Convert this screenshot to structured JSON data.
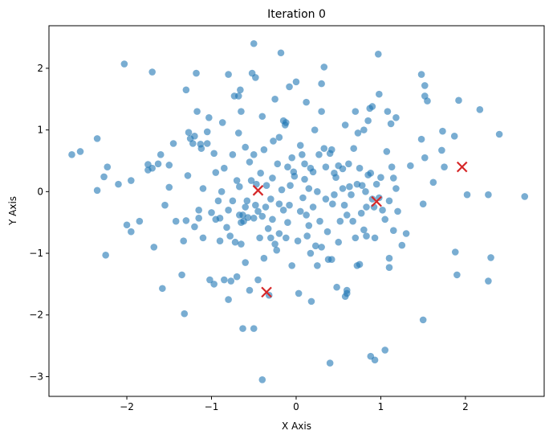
{
  "chart_data": {
    "type": "scatter",
    "title": "Iteration 0",
    "x_label": "X Axis",
    "y_label": "Y Axis",
    "xlim": [
      -2.92,
      2.93
    ],
    "ylim": [
      -3.32,
      2.69
    ],
    "xticks": [
      {
        "value": -2,
        "label": "−2"
      },
      {
        "value": -1,
        "label": "−1"
      },
      0,
      1,
      2
    ],
    "yticks": [
      {
        "value": -3,
        "label": "−3"
      },
      {
        "value": -2,
        "label": "−2"
      },
      {
        "value": -1,
        "label": "−1"
      },
      0,
      1,
      2
    ],
    "series": [
      {
        "color": "#1f77b4",
        "marker": "o",
        "x": [
          -2.65,
          -2.55,
          -2.35,
          -2.35,
          -2.27,
          -2.23,
          -2.25,
          -2.1,
          -2.03,
          -2.0,
          -1.95,
          -1.95,
          -1.85,
          -1.75,
          -1.75,
          -1.7,
          -1.7,
          -1.68,
          -1.63,
          -1.6,
          -1.58,
          -1.55,
          -1.5,
          -1.5,
          -1.45,
          -1.42,
          -1.35,
          -1.33,
          -1.32,
          -1.3,
          -1.3,
          -1.28,
          -1.27,
          -1.25,
          -1.22,
          -1.2,
          -1.2,
          -1.18,
          -1.17,
          -1.15,
          -1.15,
          -1.13,
          -1.12,
          -1.1,
          -1.1,
          -1.05,
          -1.05,
          -1.03,
          -1.02,
          -1.0,
          -0.97,
          -0.97,
          -0.95,
          -0.95,
          -0.92,
          -0.9,
          -0.9,
          -0.88,
          -0.87,
          -0.85,
          -0.85,
          -0.82,
          -0.8,
          -0.8,
          -0.8,
          -0.78,
          -0.77,
          -0.75,
          -0.75,
          -0.73,
          -0.72,
          -0.7,
          -0.7,
          -0.68,
          -0.68,
          -0.67,
          -0.67,
          -0.66,
          -0.65,
          -0.65,
          -0.65,
          -0.63,
          -0.63,
          -0.62,
          -0.6,
          -0.6,
          -0.6,
          -0.58,
          -0.57,
          -0.55,
          -0.55,
          -0.53,
          -0.52,
          -0.5,
          -0.5,
          -0.5,
          -0.5,
          -0.48,
          -0.48,
          -0.47,
          -0.45,
          -0.45,
          -0.43,
          -0.42,
          -0.4,
          -0.4,
          -0.4,
          -0.38,
          -0.38,
          -0.36,
          -0.35,
          -0.33,
          -0.32,
          -0.3,
          -0.3,
          -0.28,
          -0.28,
          -0.27,
          -0.25,
          -0.25,
          -0.23,
          -0.22,
          -0.2,
          -0.2,
          -0.2,
          -0.18,
          -0.17,
          -0.15,
          -0.15,
          -0.13,
          -0.12,
          -0.12,
          -0.1,
          -0.1,
          -0.08,
          -0.08,
          -0.07,
          -0.05,
          -0.05,
          -0.03,
          -0.02,
          0.0,
          0.02,
          0.03,
          0.05,
          0.05,
          0.07,
          0.08,
          0.1,
          0.1,
          0.12,
          0.12,
          0.13,
          0.15,
          0.15,
          0.17,
          0.17,
          0.18,
          0.2,
          0.2,
          0.22,
          0.23,
          0.25,
          0.25,
          0.27,
          0.28,
          0.3,
          0.3,
          0.3,
          0.33,
          0.33,
          0.35,
          0.35,
          0.37,
          0.38,
          0.4,
          0.4,
          0.42,
          0.42,
          0.43,
          0.45,
          0.45,
          0.47,
          0.48,
          0.5,
          0.5,
          0.52,
          0.55,
          0.55,
          0.57,
          0.58,
          0.58,
          0.6,
          0.6,
          0.6,
          0.62,
          0.63,
          0.65,
          0.67,
          0.68,
          0.7,
          0.7,
          0.72,
          0.72,
          0.73,
          0.75,
          0.75,
          0.77,
          0.78,
          0.8,
          0.8,
          0.82,
          0.83,
          0.83,
          0.85,
          0.85,
          0.87,
          0.88,
          0.88,
          0.9,
          0.9,
          0.92,
          0.93,
          0.93,
          0.95,
          0.97,
          0.98,
          0.98,
          1.0,
          1.02,
          1.05,
          1.05,
          1.07,
          1.08,
          1.1,
          1.1,
          1.1,
          1.12,
          1.13,
          1.15,
          1.15,
          1.18,
          1.18,
          1.2,
          1.25,
          1.3,
          1.35,
          1.48,
          1.48,
          1.5,
          1.5,
          1.52,
          1.52,
          1.52,
          1.55,
          1.62,
          1.72,
          1.73,
          1.75,
          1.87,
          1.88,
          1.9,
          1.92,
          2.02,
          2.17,
          2.27,
          2.27,
          2.3,
          2.4,
          2.7
        ],
        "values": [
          0.6,
          0.65,
          0.86,
          0.02,
          0.24,
          0.4,
          -1.03,
          0.12,
          2.07,
          -0.54,
          -0.65,
          0.18,
          -0.48,
          0.35,
          0.44,
          1.94,
          0.38,
          -0.9,
          0.45,
          0.6,
          -1.57,
          -0.22,
          0.07,
          0.43,
          0.78,
          -0.48,
          -1.35,
          -0.8,
          -1.98,
          1.65,
          -0.47,
          0.26,
          0.96,
          0.86,
          0.78,
          0.9,
          -0.57,
          1.92,
          1.3,
          -0.3,
          -0.43,
          0.77,
          0.7,
          -0.75,
          0.05,
          0.78,
          0.97,
          1.2,
          -1.43,
          -0.34,
          0.62,
          -1.5,
          -0.45,
          0.31,
          -0.15,
          -0.8,
          -0.43,
          0.0,
          1.12,
          -1.43,
          0.38,
          -0.58,
          1.9,
          -1.75,
          -0.3,
          -0.72,
          -1.45,
          -0.15,
          0.6,
          1.55,
          -0.82,
          -1.38,
          0.18,
          0.95,
          1.55,
          -0.38,
          0.08,
          1.65,
          -0.5,
          -0.85,
          1.3,
          -0.38,
          -2.22,
          -0.48,
          0.72,
          -1.15,
          -0.25,
          -0.15,
          -0.42,
          0.48,
          -1.6,
          0.18,
          1.92,
          2.4,
          -2.22,
          -0.43,
          0.6,
          1.85,
          -0.22,
          0.12,
          -0.32,
          -1.43,
          -0.75,
          0.3,
          -0.4,
          1.22,
          -3.05,
          -1.08,
          0.68,
          -0.25,
          0.1,
          -0.6,
          -1.68,
          -0.12,
          -0.75,
          0.22,
          -0.45,
          0.82,
          -0.85,
          1.5,
          -0.95,
          0.45,
          -0.2,
          -0.68,
          0.88,
          2.25,
          0.03,
          -0.3,
          1.15,
          1.08,
          -0.75,
          1.12,
          0.4,
          -0.5,
          -0.22,
          1.7,
          0.1,
          -1.2,
          0.55,
          0.32,
          0.25,
          1.78,
          -0.8,
          -1.65,
          0.75,
          -0.32,
          0.6,
          -0.1,
          0.45,
          0.2,
          -0.38,
          1.45,
          -0.72,
          0.05,
          -0.55,
          -1.0,
          0.38,
          -1.78,
          -0.25,
          0.32,
          1.0,
          -0.88,
          0.0,
          -1.2,
          0.6,
          -0.48,
          1.75,
          1.3,
          -0.9,
          0.7,
          2.02,
          -0.12,
          0.4,
          -0.65,
          -1.1,
          0.62,
          -2.78,
          0.68,
          -1.1,
          -0.2,
          0.3,
          -0.05,
          0.23,
          -1.55,
          -0.82,
          0.42,
          -0.48,
          0.05,
          0.37,
          -0.22,
          1.08,
          -1.7,
          -1.65,
          -0.38,
          -1.6,
          0.45,
          0.08,
          -0.05,
          -0.48,
          0.7,
          -0.75,
          1.3,
          -1.2,
          0.12,
          0.95,
          0.38,
          -1.18,
          -0.35,
          0.1,
          1.0,
          -0.62,
          0.0,
          -0.72,
          -0.25,
          1.15,
          0.27,
          1.35,
          0.3,
          -2.67,
          -0.12,
          1.38,
          -0.25,
          -0.75,
          -2.73,
          0.12,
          2.23,
          -0.1,
          1.58,
          0.23,
          -0.3,
          -2.57,
          -0.45,
          0.65,
          1.3,
          -1.08,
          -0.15,
          -1.23,
          1.1,
          0.4,
          -0.63,
          0.22,
          0.05,
          1.2,
          -0.32,
          -0.87,
          -0.68,
          0.42,
          1.9,
          0.85,
          -2.08,
          -0.2,
          1.72,
          1.55,
          0.55,
          1.47,
          0.15,
          0.67,
          0.98,
          0.4,
          0.9,
          -0.98,
          -1.35,
          1.48,
          -0.05,
          1.33,
          -0.05,
          -1.45,
          -1.07,
          0.93,
          -0.08
        ]
      },
      {
        "color": "#d62728",
        "marker": "x",
        "x": [
          -0.45,
          -0.35,
          0.95,
          1.96
        ],
        "values": [
          0.02,
          -1.63,
          -0.16,
          0.4
        ]
      }
    ]
  }
}
